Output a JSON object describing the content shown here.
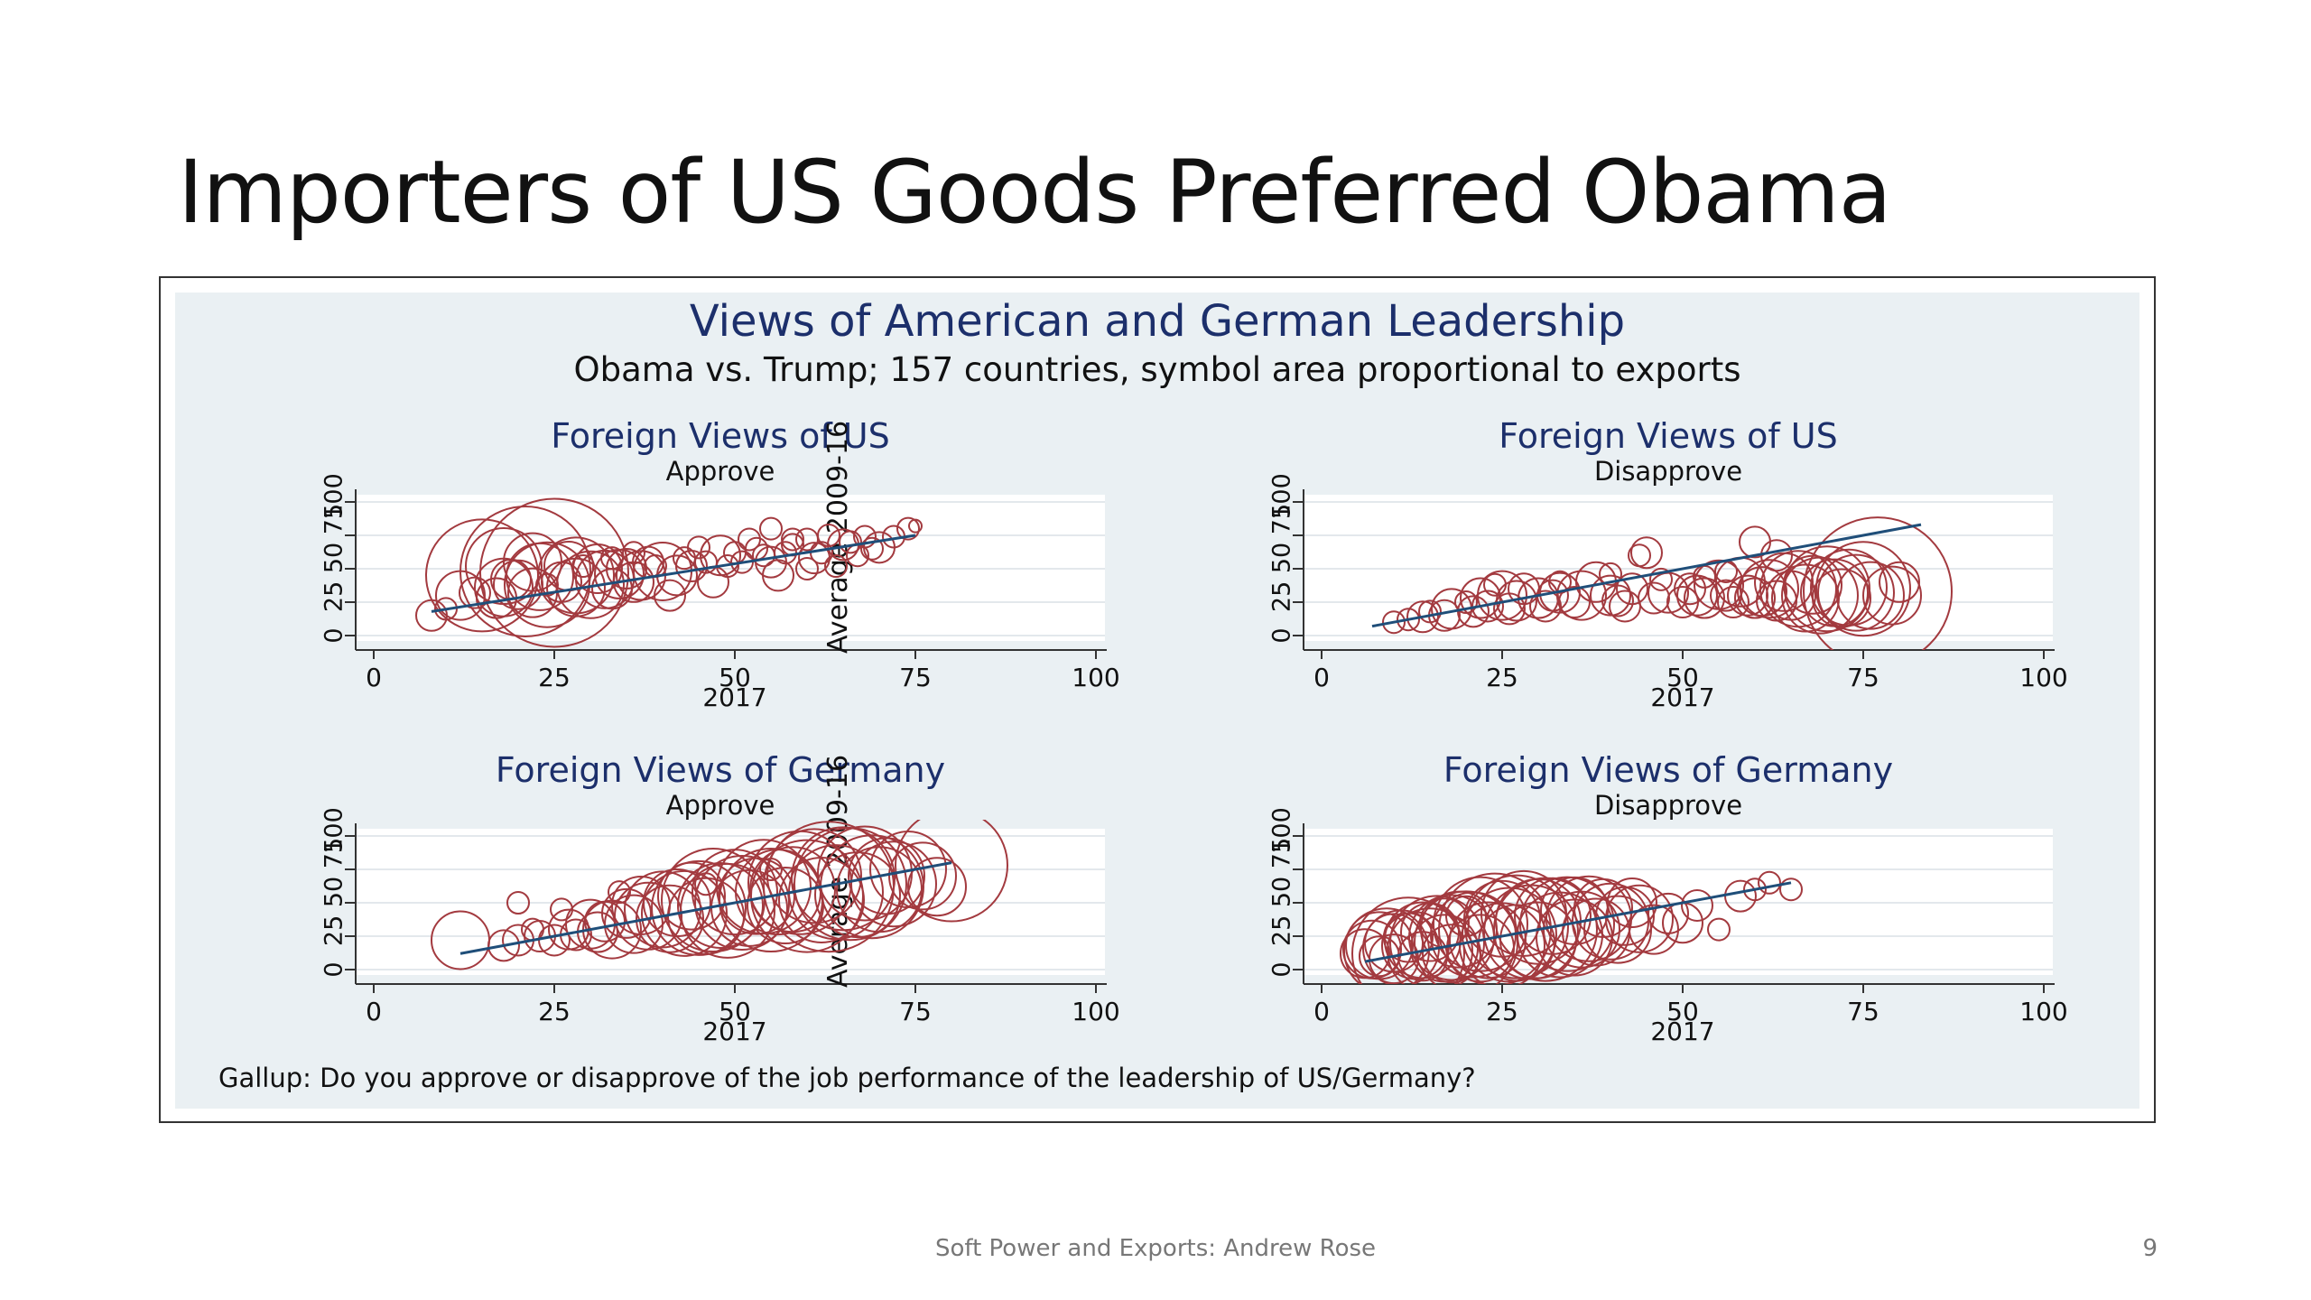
{
  "slide": {
    "title": "Importers of US Goods Preferred Obama",
    "footer": "Soft Power and Exports: Andrew Rose",
    "page_number": "9"
  },
  "figure": {
    "title": "Views of American and German Leadership",
    "subtitle": "Obama vs. Trump; 157 countries, symbol area proportional to exports",
    "note": "Gallup: Do you approve or disapprove of the job performance of the leadership of US/Germany?",
    "colors": {
      "background": "#eaf0f3",
      "plot": "#ffffff",
      "marker": "#a33a3f",
      "fit_line": "#1f4e79",
      "title": "#1c2f6b"
    }
  },
  "chart_data": [
    {
      "type": "scatter",
      "title": "Foreign Views of US",
      "subtitle": "Approve",
      "xlabel": "2017",
      "ylabel": "Average 2009-16",
      "xlim": [
        0,
        100
      ],
      "ylim": [
        0,
        100
      ],
      "xticks": [
        "0",
        "25",
        "50",
        "75",
        "100"
      ],
      "yticks": [
        "0",
        "25",
        "50",
        "75",
        "100"
      ],
      "fit_line": [
        [
          8,
          18
        ],
        [
          75,
          75
        ]
      ],
      "points": [
        [
          8,
          15,
          3
        ],
        [
          10,
          20,
          2
        ],
        [
          12,
          30,
          5
        ],
        [
          14,
          32,
          3
        ],
        [
          15,
          45,
          12
        ],
        [
          17,
          28,
          4
        ],
        [
          18,
          36,
          6
        ],
        [
          18,
          52,
          8
        ],
        [
          19,
          42,
          4
        ],
        [
          20,
          38,
          5
        ],
        [
          21,
          48,
          14
        ],
        [
          22,
          32,
          5
        ],
        [
          22,
          55,
          6
        ],
        [
          23,
          44,
          7
        ],
        [
          24,
          38,
          9
        ],
        [
          25,
          47,
          16
        ],
        [
          26,
          40,
          4
        ],
        [
          27,
          52,
          5
        ],
        [
          28,
          36,
          6
        ],
        [
          28,
          45,
          8
        ],
        [
          30,
          38,
          7
        ],
        [
          31,
          50,
          5
        ],
        [
          32,
          42,
          6
        ],
        [
          33,
          35,
          4
        ],
        [
          34,
          46,
          5
        ],
        [
          35,
          50,
          4
        ],
        [
          36,
          40,
          4
        ],
        [
          37,
          45,
          5
        ],
        [
          38,
          55,
          3
        ],
        [
          40,
          48,
          6
        ],
        [
          41,
          30,
          3
        ],
        [
          42,
          45,
          4
        ],
        [
          44,
          52,
          3
        ],
        [
          46,
          55,
          2
        ],
        [
          47,
          40,
          3
        ],
        [
          48,
          60,
          4
        ],
        [
          50,
          62,
          2
        ],
        [
          51,
          55,
          2
        ],
        [
          52,
          72,
          2
        ],
        [
          53,
          65,
          2
        ],
        [
          55,
          55,
          3
        ],
        [
          55,
          80,
          2
        ],
        [
          56,
          45,
          3
        ],
        [
          57,
          62,
          2
        ],
        [
          58,
          68,
          2
        ],
        [
          60,
          50,
          2
        ],
        [
          60,
          72,
          2
        ],
        [
          61,
          58,
          3
        ],
        [
          62,
          62,
          2
        ],
        [
          63,
          75,
          2
        ],
        [
          64,
          52,
          2
        ],
        [
          65,
          68,
          3
        ],
        [
          66,
          70,
          2
        ],
        [
          67,
          60,
          2
        ],
        [
          68,
          74,
          2
        ],
        [
          69,
          65,
          2
        ],
        [
          70,
          66,
          3
        ],
        [
          72,
          74,
          2
        ],
        [
          74,
          80,
          2
        ],
        [
          75,
          82,
          1
        ],
        [
          24,
          38,
          2
        ],
        [
          29,
          52,
          2
        ],
        [
          33,
          58,
          2
        ],
        [
          36,
          62,
          2
        ],
        [
          39,
          52,
          2
        ],
        [
          43,
          58,
          2
        ],
        [
          45,
          66,
          2
        ],
        [
          49,
          52,
          2
        ],
        [
          54,
          60,
          2
        ],
        [
          58,
          72,
          2
        ]
      ]
    },
    {
      "type": "scatter",
      "title": "Foreign Views of US",
      "subtitle": "Disapprove",
      "xlabel": "2017",
      "ylabel": "",
      "xlim": [
        0,
        100
      ],
      "ylim": [
        0,
        100
      ],
      "xticks": [
        "0",
        "25",
        "50",
        "75",
        "100"
      ],
      "yticks": [
        "0",
        "25",
        "50",
        "75",
        "100"
      ],
      "fit_line": [
        [
          7,
          7
        ],
        [
          83,
          83
        ]
      ],
      "points": [
        [
          10,
          10,
          2
        ],
        [
          12,
          12,
          2
        ],
        [
          14,
          14,
          3
        ],
        [
          15,
          18,
          2
        ],
        [
          17,
          15,
          3
        ],
        [
          18,
          20,
          4
        ],
        [
          20,
          25,
          2
        ],
        [
          21,
          18,
          3
        ],
        [
          22,
          28,
          4
        ],
        [
          23,
          22,
          3
        ],
        [
          25,
          30,
          5
        ],
        [
          26,
          20,
          3
        ],
        [
          27,
          26,
          4
        ],
        [
          28,
          35,
          3
        ],
        [
          30,
          28,
          4
        ],
        [
          31,
          22,
          3
        ],
        [
          32,
          30,
          3
        ],
        [
          33,
          32,
          4
        ],
        [
          35,
          25,
          3
        ],
        [
          36,
          30,
          5
        ],
        [
          38,
          40,
          4
        ],
        [
          40,
          30,
          4
        ],
        [
          41,
          26,
          3
        ],
        [
          42,
          22,
          3
        ],
        [
          43,
          35,
          3
        ],
        [
          44,
          60,
          2
        ],
        [
          45,
          62,
          3
        ],
        [
          46,
          28,
          3
        ],
        [
          48,
          32,
          4
        ],
        [
          50,
          25,
          3
        ],
        [
          51,
          35,
          3
        ],
        [
          52,
          30,
          4
        ],
        [
          53,
          28,
          4
        ],
        [
          55,
          38,
          5
        ],
        [
          56,
          30,
          3
        ],
        [
          57,
          25,
          3
        ],
        [
          58,
          40,
          5
        ],
        [
          59,
          30,
          4
        ],
        [
          60,
          28,
          4
        ],
        [
          61,
          33,
          5
        ],
        [
          62,
          35,
          6
        ],
        [
          63,
          26,
          4
        ],
        [
          64,
          40,
          6
        ],
        [
          65,
          30,
          5
        ],
        [
          66,
          35,
          8
        ],
        [
          67,
          28,
          7
        ],
        [
          68,
          38,
          6
        ],
        [
          69,
          30,
          8
        ],
        [
          70,
          35,
          9
        ],
        [
          71,
          32,
          7
        ],
        [
          72,
          28,
          6
        ],
        [
          73,
          36,
          8
        ],
        [
          74,
          32,
          8
        ],
        [
          75,
          35,
          10
        ],
        [
          76,
          30,
          7
        ],
        [
          77,
          33,
          16
        ],
        [
          79,
          30,
          6
        ],
        [
          80,
          40,
          4
        ],
        [
          63,
          60,
          3
        ],
        [
          56,
          48,
          2
        ],
        [
          60,
          70,
          3
        ],
        [
          33,
          40,
          2
        ],
        [
          47,
          42,
          2
        ],
        [
          53,
          44,
          2
        ],
        [
          40,
          46,
          2
        ],
        [
          24,
          38,
          2
        ]
      ]
    },
    {
      "type": "scatter",
      "title": "Foreign Views of Germany",
      "subtitle": "Approve",
      "xlabel": "2017",
      "ylabel": "Average 2009-16",
      "xlim": [
        0,
        100
      ],
      "ylim": [
        0,
        100
      ],
      "xticks": [
        "0",
        "25",
        "50",
        "75",
        "100"
      ],
      "yticks": [
        "0",
        "25",
        "50",
        "75",
        "100"
      ],
      "fit_line": [
        [
          12,
          12
        ],
        [
          80,
          80
        ]
      ],
      "points": [
        [
          12,
          22,
          6
        ],
        [
          18,
          18,
          3
        ],
        [
          20,
          22,
          3
        ],
        [
          22,
          30,
          2
        ],
        [
          23,
          25,
          3
        ],
        [
          25,
          22,
          3
        ],
        [
          27,
          30,
          4
        ],
        [
          28,
          26,
          3
        ],
        [
          30,
          34,
          5
        ],
        [
          31,
          28,
          4
        ],
        [
          32,
          36,
          4
        ],
        [
          33,
          30,
          6
        ],
        [
          35,
          42,
          5
        ],
        [
          36,
          34,
          6
        ],
        [
          37,
          48,
          6
        ],
        [
          38,
          40,
          7
        ],
        [
          40,
          45,
          8
        ],
        [
          41,
          38,
          7
        ],
        [
          42,
          50,
          7
        ],
        [
          43,
          42,
          9
        ],
        [
          44,
          55,
          7
        ],
        [
          45,
          46,
          10
        ],
        [
          46,
          40,
          8
        ],
        [
          47,
          52,
          11
        ],
        [
          48,
          48,
          9
        ],
        [
          49,
          44,
          10
        ],
        [
          50,
          58,
          9
        ],
        [
          51,
          50,
          10
        ],
        [
          52,
          46,
          8
        ],
        [
          53,
          55,
          8
        ],
        [
          54,
          62,
          10
        ],
        [
          55,
          52,
          11
        ],
        [
          56,
          58,
          9
        ],
        [
          57,
          48,
          8
        ],
        [
          58,
          60,
          9
        ],
        [
          59,
          65,
          11
        ],
        [
          60,
          55,
          12
        ],
        [
          61,
          70,
          10
        ],
        [
          62,
          52,
          9
        ],
        [
          63,
          62,
          14
        ],
        [
          64,
          58,
          10
        ],
        [
          65,
          68,
          11
        ],
        [
          66,
          64,
          12
        ],
        [
          67,
          56,
          9
        ],
        [
          68,
          72,
          10
        ],
        [
          69,
          62,
          11
        ],
        [
          70,
          60,
          9
        ],
        [
          71,
          70,
          8
        ],
        [
          72,
          64,
          9
        ],
        [
          74,
          75,
          8
        ],
        [
          76,
          70,
          7
        ],
        [
          78,
          62,
          6
        ],
        [
          80,
          78,
          12
        ],
        [
          20,
          50,
          2
        ],
        [
          26,
          45,
          2
        ],
        [
          34,
          58,
          2
        ],
        [
          46,
          64,
          2
        ],
        [
          55,
          75,
          2
        ]
      ]
    },
    {
      "type": "scatter",
      "title": "Foreign Views of Germany",
      "subtitle": "Disapprove",
      "xlabel": "2017",
      "ylabel": "",
      "xlim": [
        0,
        100
      ],
      "ylim": [
        0,
        100
      ],
      "xticks": [
        "0",
        "25",
        "50",
        "75",
        "100"
      ],
      "yticks": [
        "0",
        "25",
        "50",
        "75",
        "100"
      ],
      "fit_line": [
        [
          6,
          6
        ],
        [
          65,
          65
        ]
      ],
      "points": [
        [
          6,
          12,
          5
        ],
        [
          7,
          15,
          6
        ],
        [
          8,
          10,
          4
        ],
        [
          8,
          18,
          7
        ],
        [
          9,
          14,
          9
        ],
        [
          10,
          8,
          5
        ],
        [
          10,
          20,
          6
        ],
        [
          11,
          16,
          8
        ],
        [
          12,
          12,
          12
        ],
        [
          12,
          24,
          5
        ],
        [
          13,
          18,
          7
        ],
        [
          14,
          10,
          5
        ],
        [
          14,
          22,
          8
        ],
        [
          15,
          14,
          9
        ],
        [
          15,
          28,
          6
        ],
        [
          16,
          20,
          10
        ],
        [
          17,
          16,
          7
        ],
        [
          17,
          35,
          5
        ],
        [
          18,
          24,
          9
        ],
        [
          18,
          12,
          6
        ],
        [
          19,
          30,
          8
        ],
        [
          20,
          20,
          11
        ],
        [
          20,
          40,
          4
        ],
        [
          21,
          26,
          9
        ],
        [
          22,
          16,
          7
        ],
        [
          22,
          34,
          10
        ],
        [
          23,
          22,
          8
        ],
        [
          24,
          30,
          12
        ],
        [
          25,
          18,
          9
        ],
        [
          25,
          38,
          8
        ],
        [
          26,
          26,
          10
        ],
        [
          27,
          32,
          11
        ],
        [
          27,
          20,
          8
        ],
        [
          28,
          42,
          9
        ],
        [
          29,
          28,
          10
        ],
        [
          30,
          36,
          9
        ],
        [
          30,
          22,
          8
        ],
        [
          31,
          30,
          11
        ],
        [
          32,
          40,
          8
        ],
        [
          33,
          26,
          9
        ],
        [
          34,
          34,
          10
        ],
        [
          35,
          44,
          7
        ],
        [
          35,
          24,
          8
        ],
        [
          36,
          30,
          8
        ],
        [
          37,
          38,
          9
        ],
        [
          38,
          28,
          7
        ],
        [
          39,
          46,
          6
        ],
        [
          40,
          36,
          8
        ],
        [
          41,
          30,
          7
        ],
        [
          42,
          40,
          6
        ],
        [
          43,
          50,
          5
        ],
        [
          44,
          38,
          7
        ],
        [
          46,
          30,
          5
        ],
        [
          48,
          42,
          4
        ],
        [
          50,
          35,
          4
        ],
        [
          52,
          48,
          3
        ],
        [
          55,
          30,
          2
        ],
        [
          58,
          55,
          3
        ],
        [
          60,
          60,
          2
        ],
        [
          62,
          65,
          2
        ],
        [
          65,
          60,
          2
        ]
      ]
    }
  ]
}
